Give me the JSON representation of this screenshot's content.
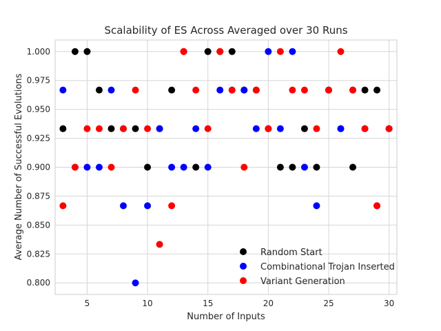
{
  "chart_data": {
    "type": "scatter",
    "title": "Scalability of ES Across Averaged over 30 Runs",
    "xlabel": "Number of Inputs",
    "ylabel": "Average Number of Successful Evolutions",
    "xlim": [
      2.35,
      30.65
    ],
    "ylim": [
      0.79,
      1.01
    ],
    "xticks": [
      5,
      10,
      15,
      20,
      25,
      30
    ],
    "yticks": [
      0.8,
      0.825,
      0.85,
      0.875,
      0.9,
      0.925,
      0.95,
      0.975,
      1.0
    ],
    "ytick_labels": [
      "0.800",
      "0.825",
      "0.850",
      "0.875",
      "0.900",
      "0.925",
      "0.950",
      "0.975",
      "1.000"
    ],
    "grid": true,
    "legend": "lower-right",
    "series": [
      {
        "name": "Random Start",
        "color": "#000000",
        "x": [
          3,
          4,
          5,
          6,
          7,
          8,
          9,
          10,
          11,
          12,
          13,
          14,
          15,
          16,
          17,
          18,
          19,
          20,
          21,
          22,
          23,
          24,
          25,
          26,
          27,
          28,
          29,
          30
        ],
        "y": [
          0.9333,
          1.0,
          1.0,
          0.9667,
          0.9333,
          0.9333,
          0.9333,
          0.9,
          0.9333,
          0.9667,
          1.0,
          0.9,
          1.0,
          1.0,
          1.0,
          0.9667,
          0.9667,
          0.9333,
          0.9,
          0.9,
          0.9333,
          0.9,
          0.9667,
          0.9333,
          0.9,
          0.9667,
          0.9667,
          0.9333
        ]
      },
      {
        "name": "Combinational Trojan Inserted",
        "color": "#0000ff",
        "x": [
          3,
          4,
          5,
          6,
          7,
          8,
          9,
          10,
          11,
          12,
          13,
          14,
          15,
          16,
          17,
          18,
          19,
          20,
          21,
          22,
          23,
          24,
          25,
          26,
          27,
          28,
          29,
          30
        ],
        "y": [
          0.9667,
          0.9,
          0.9,
          0.9,
          0.9667,
          0.8667,
          0.8,
          0.8667,
          0.9333,
          0.9,
          0.9,
          0.9333,
          0.9,
          0.9667,
          0.9667,
          0.9667,
          0.9333,
          1.0,
          0.9333,
          1.0,
          0.9,
          0.8667,
          0.9667,
          0.9333,
          0.9667,
          0.9333,
          0.8667,
          0.9333
        ]
      },
      {
        "name": "Variant Generation",
        "color": "#ff0000",
        "x": [
          3,
          4,
          5,
          6,
          7,
          8,
          9,
          10,
          11,
          12,
          13,
          14,
          15,
          16,
          17,
          18,
          19,
          20,
          21,
          22,
          23,
          24,
          25,
          26,
          27,
          28,
          29,
          30
        ],
        "y": [
          0.8667,
          0.9,
          0.9333,
          0.9333,
          0.9,
          0.9333,
          0.9667,
          0.9333,
          0.8333,
          0.8667,
          1.0,
          0.9667,
          0.9333,
          1.0,
          0.9667,
          0.9,
          0.9667,
          0.9333,
          1.0,
          0.9667,
          0.9667,
          0.9333,
          0.9667,
          1.0,
          0.9667,
          0.9333,
          0.8667,
          0.9333
        ]
      }
    ]
  }
}
